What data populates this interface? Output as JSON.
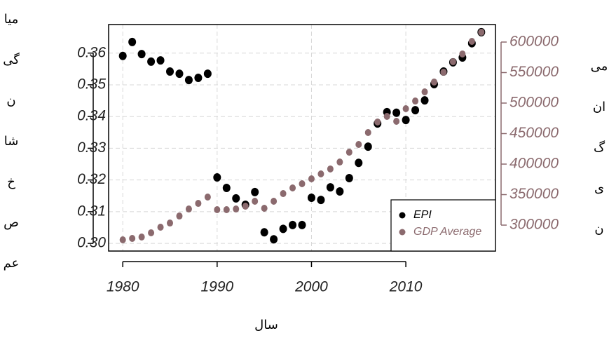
{
  "chart_data": {
    "type": "scatter",
    "xlabel": "سال",
    "ylabel": [
      "میا",
      "گی",
      "ن",
      "شا",
      "خ",
      "ص",
      "عم"
    ],
    "y2label": [
      "می",
      "ان",
      "گ",
      "ی",
      "ن"
    ],
    "x": [
      1980,
      1981,
      1982,
      1983,
      1984,
      1985,
      1986,
      1987,
      1988,
      1989,
      1990,
      1991,
      1992,
      1993,
      1994,
      1995,
      1996,
      1997,
      1998,
      1999,
      2000,
      2001,
      2002,
      2003,
      2004,
      2005,
      2006,
      2007,
      2008,
      2009,
      2010,
      2011,
      2012,
      2013,
      2014,
      2015,
      2016,
      2017,
      2018
    ],
    "series": [
      {
        "name": "EPI",
        "color": "#000000",
        "axis": "y",
        "values": [
          0.3591,
          0.3635,
          0.3597,
          0.3573,
          0.3577,
          0.3542,
          0.3535,
          0.3515,
          0.3522,
          0.3535,
          0.3208,
          0.3175,
          0.3142,
          0.3122,
          0.3162,
          0.3035,
          0.3013,
          0.3046,
          0.3058,
          0.3058,
          0.3144,
          0.3137,
          0.3177,
          0.3164,
          0.3206,
          0.3254,
          0.3305,
          0.3378,
          0.3414,
          0.3412,
          0.3389,
          0.342,
          0.3451,
          0.3502,
          0.3542,
          0.3571,
          0.3586,
          0.3631,
          0.3666
        ]
      },
      {
        "name": "GDP Average",
        "color": "#8b6a6e",
        "axis": "y2",
        "values": [
          275900,
          278200,
          280500,
          287400,
          296600,
          303400,
          314900,
          326400,
          335600,
          346000,
          325300,
          325300,
          326400,
          331000,
          339100,
          327600,
          339100,
          351700,
          360900,
          367800,
          375900,
          383900,
          392000,
          403400,
          419500,
          432200,
          451700,
          469000,
          478200,
          470100,
          490800,
          503400,
          518400,
          534500,
          550600,
          567800,
          580500,
          601100,
          616100
        ]
      }
    ],
    "xlim": [
      1978.5,
      2019.5
    ],
    "xticks": [
      1980,
      1990,
      2000,
      2010
    ],
    "ylim": [
      0.2976,
      0.369
    ],
    "yticks": [
      {
        "value": 0.3,
        "label": "0.30"
      },
      0.31,
      0.32,
      0.33,
      0.34,
      0.35,
      0.36
    ],
    "y2lim": [
      257500,
      628700
    ],
    "y2ticks": [
      300000,
      350000,
      400000,
      450000,
      500000,
      550000,
      600000
    ],
    "y2color": "#8b6a6e",
    "grid": true,
    "legend": "lower right"
  }
}
